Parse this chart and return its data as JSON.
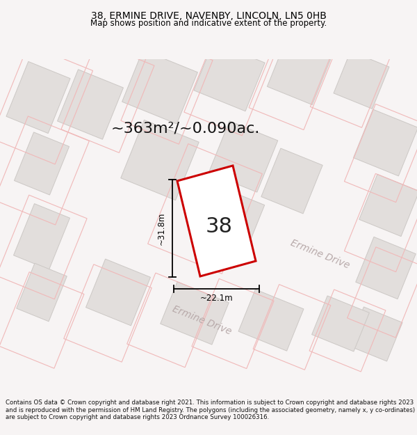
{
  "title": "38, ERMINE DRIVE, NAVENBY, LINCOLN, LN5 0HB",
  "subtitle": "Map shows position and indicative extent of the property.",
  "area_text": "~363m²/~0.090ac.",
  "plot_number": "38",
  "dim_width": "~22.1m",
  "dim_height": "~31.8m",
  "road_label1": "Ermine Drive",
  "road_label2": "Ermine Drive",
  "footer": "Contains OS data © Crown copyright and database right 2021. This information is subject to Crown copyright and database rights 2023 and is reproduced with the permission of HM Land Registry. The polygons (including the associated geometry, namely x, y co-ordinates) are subject to Crown copyright and database rights 2023 Ordnance Survey 100026316.",
  "bg_color": "#f7f4f4",
  "map_bg": "#f9f6f6",
  "plot_red": "#cc0000",
  "plot_fill": "#ffffff",
  "parcel_pink": "#f0b8b8",
  "building_fill": "#e2dedc",
  "building_edge": "#ccc8c5",
  "road_fill": "#ede8e8",
  "dim_color": "#000000",
  "label_gray": "#b8aaaa",
  "text_color": "#111111",
  "title_fontsize": 10,
  "subtitle_fontsize": 8.5,
  "area_fontsize": 16,
  "number_fontsize": 22,
  "road_fontsize": 10,
  "dim_fontsize": 8.5,
  "footer_fontsize": 6.2
}
